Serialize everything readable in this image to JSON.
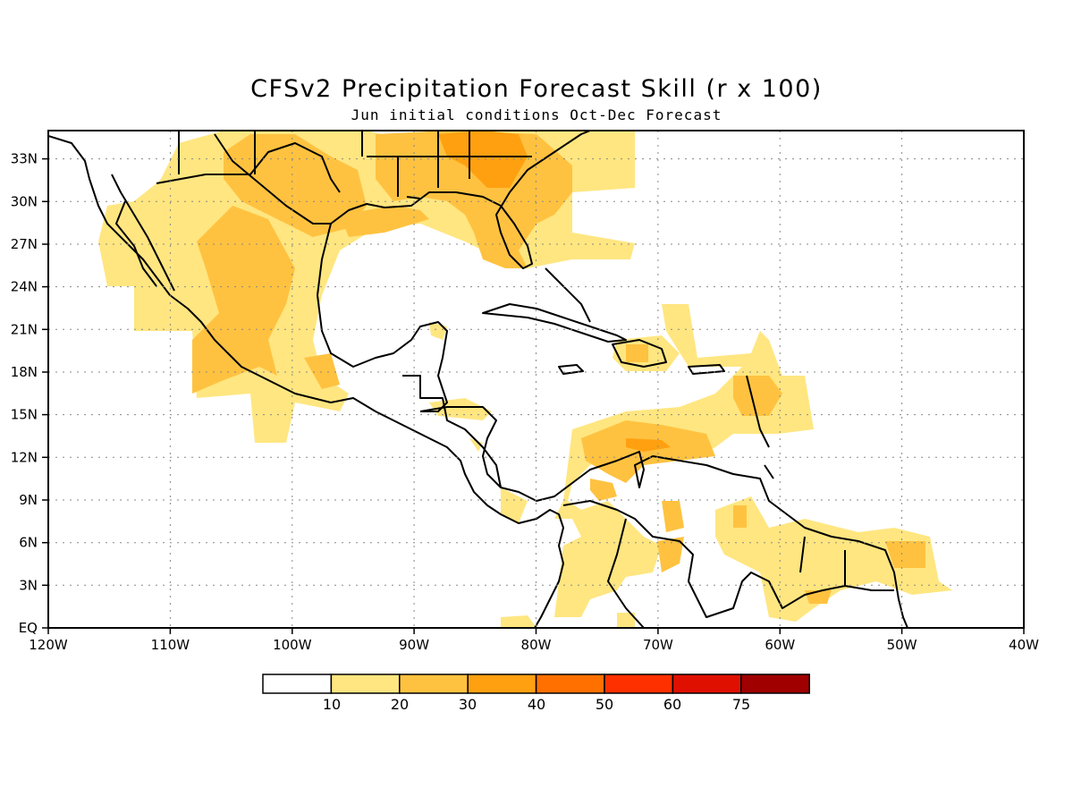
{
  "map": {
    "title": "CFSv2 Precipitation Forecast Skill (r x 100)",
    "subtitle": "Jun initial conditions  Oct-Dec Forecast",
    "lon_range": [
      -120,
      -40
    ],
    "lat_range": [
      0,
      35
    ],
    "x_ticks": [
      "120W",
      "110W",
      "100W",
      "90W",
      "80W",
      "70W",
      "60W",
      "50W",
      "40W"
    ],
    "y_ticks": [
      "EQ",
      "3N",
      "6N",
      "9N",
      "12N",
      "15N",
      "18N",
      "21N",
      "24N",
      "27N",
      "30N",
      "33N"
    ],
    "grid": true,
    "colorbar": {
      "labels": [
        "10",
        "20",
        "30",
        "40",
        "50",
        "60",
        "75"
      ],
      "colors": [
        "#ffffff",
        "#ffe680",
        "#ffc240",
        "#ffa010",
        "#ff7000",
        "#ff3000",
        "#e01000",
        "#a00000"
      ]
    }
  }
}
